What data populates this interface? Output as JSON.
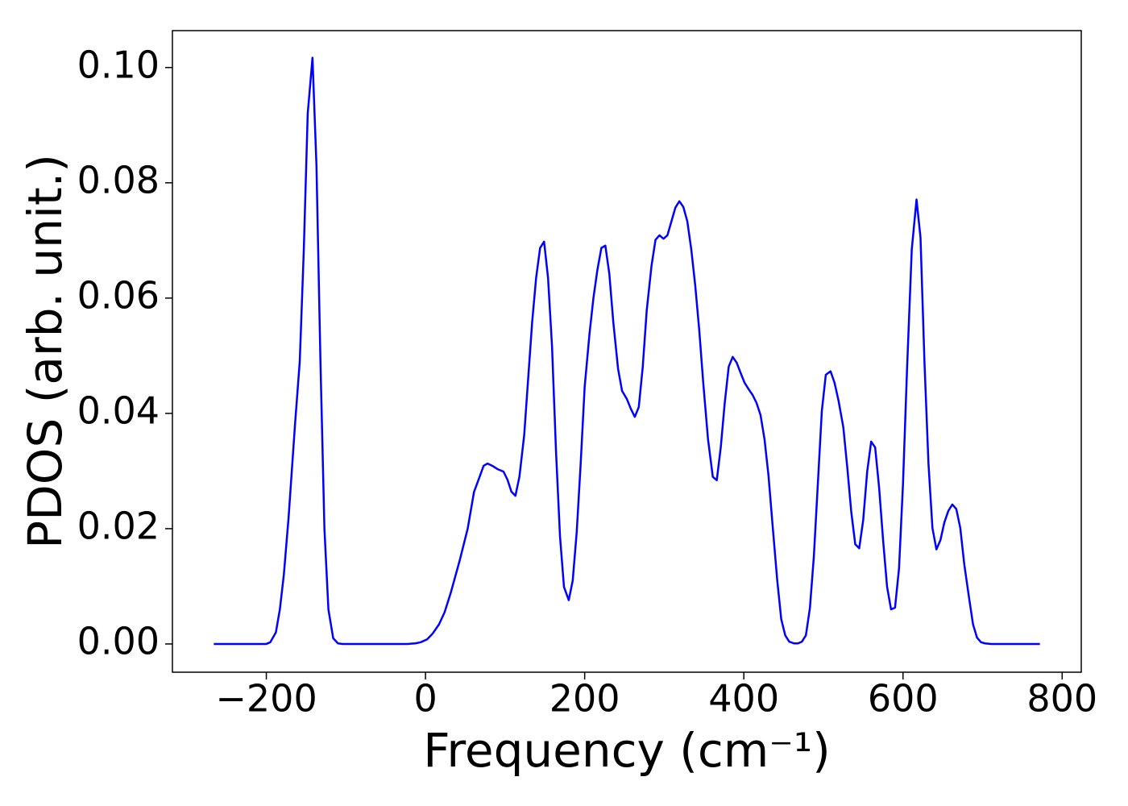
{
  "chart_data": {
    "type": "line",
    "x_label": "Frequency (cm⁻¹)",
    "y_label": "PDOS (arb. unit.)",
    "x": [
      -266,
      -200,
      -195,
      -188,
      -183,
      -178,
      -172,
      -164,
      -158,
      -153,
      -148,
      -142,
      -137,
      -132,
      -127,
      -122,
      -116,
      -110,
      -104,
      -23,
      -13,
      -6,
      2,
      9,
      17,
      24,
      32,
      43,
      53,
      61,
      68,
      73,
      78,
      84,
      91,
      98,
      103,
      108,
      113,
      118,
      124,
      129,
      134,
      139,
      144,
      149,
      154,
      159,
      164,
      169,
      174,
      180,
      185,
      190,
      195,
      200,
      206,
      211,
      216,
      221,
      226,
      231,
      236,
      242,
      247,
      253,
      258,
      263,
      268,
      273,
      278,
      284,
      289,
      294,
      299,
      304,
      309,
      314,
      319,
      324,
      329,
      334,
      339,
      344,
      349,
      355,
      361,
      366,
      371,
      376,
      381,
      386,
      391,
      396,
      401,
      406,
      411,
      416,
      421,
      426,
      431,
      436,
      442,
      447,
      452,
      457,
      463,
      468,
      473,
      478,
      483,
      488,
      493,
      498,
      503,
      509,
      514,
      519,
      525,
      530,
      535,
      540,
      545,
      550,
      555,
      560,
      565,
      570,
      575,
      580,
      585,
      590,
      595,
      600,
      605,
      611,
      617,
      622,
      627,
      632,
      637,
      642,
      647,
      652,
      657,
      662,
      667,
      672,
      677,
      683,
      688,
      693,
      698,
      703,
      711,
      772
    ],
    "series": [
      {
        "name": "PDOS",
        "color": "#0000ff",
        "values": [
          0,
          0,
          0.0003,
          0.002,
          0.006,
          0.012,
          0.022,
          0.038,
          0.049,
          0.068,
          0.092,
          0.1017,
          0.083,
          0.049,
          0.02,
          0.006,
          0.001,
          0.0001,
          0,
          0,
          0.0001,
          0.0003,
          0.0008,
          0.0018,
          0.0034,
          0.0055,
          0.009,
          0.0145,
          0.02,
          0.0264,
          0.029,
          0.0309,
          0.0313,
          0.0309,
          0.0303,
          0.0299,
          0.0285,
          0.0264,
          0.0257,
          0.029,
          0.0362,
          0.046,
          0.0558,
          0.0635,
          0.0687,
          0.0698,
          0.0635,
          0.0516,
          0.0334,
          0.0187,
          0.0099,
          0.0076,
          0.011,
          0.0194,
          0.0313,
          0.0446,
          0.0537,
          0.06,
          0.0649,
          0.0687,
          0.0691,
          0.0642,
          0.0558,
          0.0477,
          0.0439,
          0.0425,
          0.0408,
          0.0394,
          0.0411,
          0.0481,
          0.0579,
          0.0656,
          0.0701,
          0.0709,
          0.0703,
          0.0709,
          0.0733,
          0.0757,
          0.0768,
          0.0758,
          0.0733,
          0.0684,
          0.0621,
          0.0544,
          0.0453,
          0.0355,
          0.029,
          0.0284,
          0.0341,
          0.0418,
          0.0481,
          0.0498,
          0.0488,
          0.047,
          0.0453,
          0.0442,
          0.0432,
          0.0418,
          0.0397,
          0.0355,
          0.0292,
          0.0208,
          0.011,
          0.0043,
          0.0015,
          0.0004,
          0.0001,
          0.0001,
          0.0004,
          0.0015,
          0.0062,
          0.0152,
          0.0278,
          0.0404,
          0.0467,
          0.0473,
          0.0453,
          0.0422,
          0.0376,
          0.0306,
          0.0229,
          0.0173,
          0.0166,
          0.0215,
          0.0299,
          0.0351,
          0.0341,
          0.0271,
          0.018,
          0.0099,
          0.006,
          0.0063,
          0.0131,
          0.0278,
          0.0474,
          0.0684,
          0.0771,
          0.0705,
          0.0488,
          0.0313,
          0.0201,
          0.0164,
          0.018,
          0.0211,
          0.0231,
          0.0242,
          0.0234,
          0.0201,
          0.0138,
          0.008,
          0.0034,
          0.0011,
          0.0003,
          0.0001,
          0,
          0
        ]
      }
    ],
    "xlim": [
      -318,
      824
    ],
    "ylim": [
      -0.0049,
      0.1064
    ],
    "xticks": [
      {
        "value": -200,
        "label": "−200"
      },
      0,
      200,
      400,
      600,
      800
    ],
    "yticks": [
      {
        "value": 0,
        "label": "0.00"
      },
      {
        "value": 0.02,
        "label": "0.02"
      },
      {
        "value": 0.04,
        "label": "0.04"
      },
      {
        "value": 0.06,
        "label": "0.06"
      },
      {
        "value": 0.08,
        "label": "0.08"
      },
      {
        "value": 0.1,
        "label": "0.10"
      }
    ],
    "grid": false
  }
}
